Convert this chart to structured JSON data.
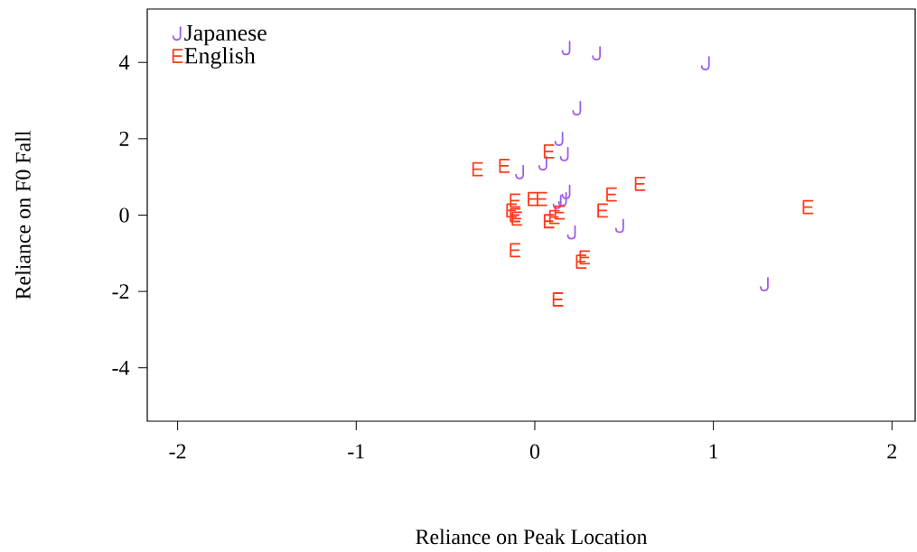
{
  "chart_data": {
    "type": "scatter",
    "xlabel": "Reliance on Peak Location",
    "ylabel": "Reliance on F0 Fall",
    "xlim": [
      -2.17,
      2.13
    ],
    "ylim": [
      -5.4,
      5.4
    ],
    "xticks": [
      -2,
      -1,
      0,
      1,
      2
    ],
    "yticks": [
      -4,
      -2,
      0,
      2,
      4
    ],
    "legend": "top left",
    "grid": false,
    "series": [
      {
        "name": "Japanese",
        "color": "#a05ce8",
        "x": [
          0.18,
          0.35,
          0.96,
          0.24,
          0.14,
          0.17,
          0.05,
          -0.08,
          0.18,
          0.16,
          0.13,
          0.21,
          0.48,
          1.29
        ],
        "values": [
          4.38,
          4.24,
          3.98,
          2.8,
          2.0,
          1.6,
          1.36,
          1.13,
          0.61,
          0.42,
          0.35,
          -0.45,
          -0.28,
          -1.81
        ]
      },
      {
        "name": "English",
        "color": "#ff3a1a",
        "x": [
          -0.32,
          -0.17,
          0.08,
          0.59,
          0.43,
          0.38,
          -0.11,
          -0.01,
          0.04,
          -0.11,
          -0.1,
          -0.13,
          0.08,
          0.11,
          0.14,
          -0.11,
          0.28,
          0.26,
          0.13,
          1.53
        ],
        "values": [
          1.2,
          1.29,
          1.67,
          0.82,
          0.54,
          0.12,
          0.38,
          0.42,
          0.42,
          0.0,
          -0.09,
          0.12,
          -0.16,
          -0.05,
          0.07,
          -0.92,
          -1.11,
          -1.22,
          -2.21,
          0.21
        ]
      }
    ]
  }
}
